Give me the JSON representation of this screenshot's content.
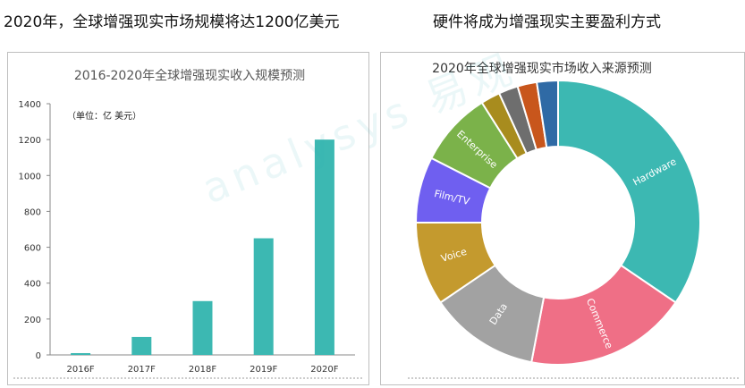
{
  "headlines": {
    "left": "2020年，全球增强现实市场规模将达1200亿美元",
    "right": "硬件将成为增强现实主要盈利方式"
  },
  "watermark": "analysys 易观",
  "chart_data": [
    {
      "type": "bar",
      "title": "2016-2020年全球增强现实收入规模预测",
      "unit_note": "（单位：亿  美元）",
      "categories": [
        "2016F",
        "2017F",
        "2018F",
        "2019F",
        "2020F"
      ],
      "values": [
        10,
        100,
        300,
        650,
        1200
      ],
      "yticks": [
        0,
        200,
        400,
        600,
        800,
        1000,
        1200,
        1400
      ],
      "ylim": [
        0,
        1400
      ],
      "grid": false,
      "color": "#3cb8b2"
    },
    {
      "type": "pie",
      "subtype": "donut",
      "title": "2020年全球增强现实市场收入来源预测",
      "slices": [
        {
          "label": "Hardware",
          "value": 34.5,
          "color": "#3cb8b2"
        },
        {
          "label": "Commerce",
          "value": 18.5,
          "color": "#ef6f86"
        },
        {
          "label": "Data",
          "value": 12.5,
          "color": "#a2a2a2"
        },
        {
          "label": "Voice",
          "value": 9.5,
          "color": "#c49a2e"
        },
        {
          "label": "Film/TV",
          "value": 7.5,
          "color": "#6f5ff0"
        },
        {
          "label": "Enterprise",
          "value": 8.5,
          "color": "#7bb24a"
        },
        {
          "label": "",
          "value": 2.2,
          "color": "#a88c1e"
        },
        {
          "label": "",
          "value": 2.2,
          "color": "#6e6e6e"
        },
        {
          "label": "",
          "value": 2.2,
          "color": "#c8561c"
        },
        {
          "label": "",
          "value": 2.4,
          "color": "#2f6aa5"
        }
      ]
    }
  ]
}
